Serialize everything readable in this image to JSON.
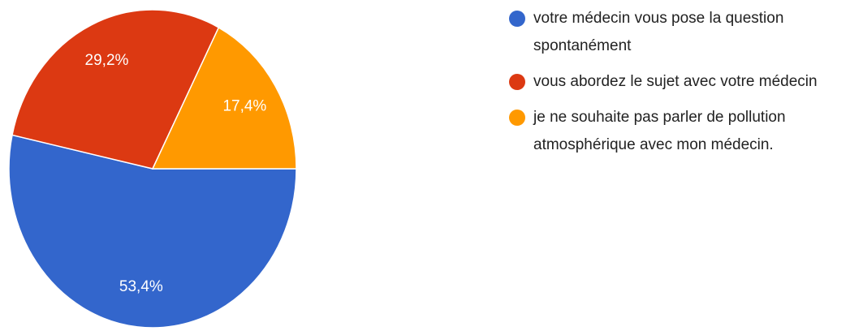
{
  "chart_data": {
    "type": "pie",
    "categories": [
      "votre médecin vous pose la question spontanément",
      "vous abordez le sujet avec votre médecin",
      "je ne souhaite pas parler de pollution atmosphérique avec mon médecin."
    ],
    "values": [
      53.4,
      29.2,
      17.4
    ],
    "value_labels": [
      "53,4%",
      "29,2%",
      "17,4%"
    ],
    "colors": [
      "#3366cc",
      "#dc3912",
      "#ff9900"
    ],
    "legend": "right"
  }
}
